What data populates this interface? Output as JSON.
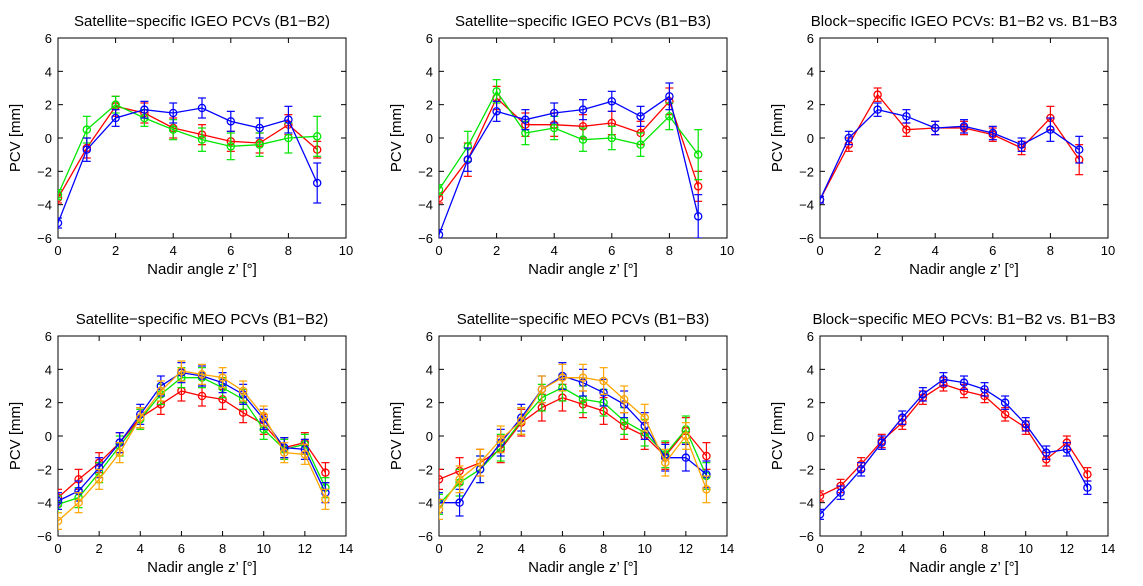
{
  "chart_data": [
    {
      "type": "line",
      "title": "Satellite−specific IGEO PCVs (B1−B2)",
      "xlabel": "Nadir angle z’ [°]",
      "ylabel": "PCV [mm]",
      "xlim": [
        0,
        10
      ],
      "ylim": [
        -6,
        6
      ],
      "xticks": [
        "0",
        "2",
        "4",
        "6",
        "8",
        "10"
      ],
      "yticks": [
        "−6",
        "−4",
        "−2",
        "0",
        "2",
        "4",
        "6"
      ],
      "x": [
        0,
        1,
        2,
        3,
        4,
        5,
        6,
        7,
        8,
        9
      ],
      "series": [
        {
          "color": "#ff0000",
          "values": [
            -3.6,
            -0.6,
            1.9,
            1.5,
            0.6,
            0.2,
            -0.2,
            -0.3,
            0.8,
            -0.7
          ],
          "errors": [
            0.3,
            0.6,
            0.6,
            0.6,
            0.6,
            0.6,
            0.6,
            0.6,
            0.6,
            0.5
          ]
        },
        {
          "color": "#00e600",
          "values": [
            -3.4,
            0.5,
            2.0,
            1.2,
            0.5,
            -0.1,
            -0.5,
            -0.4,
            0.0,
            0.1
          ],
          "errors": [
            0.3,
            0.8,
            0.5,
            0.5,
            0.6,
            0.7,
            0.8,
            0.7,
            0.9,
            1.2
          ]
        },
        {
          "color": "#0000ff",
          "values": [
            -5.1,
            -0.7,
            1.2,
            1.7,
            1.5,
            1.8,
            1.0,
            0.6,
            1.1,
            -2.7
          ],
          "errors": [
            0.3,
            0.7,
            0.5,
            0.5,
            0.6,
            0.6,
            0.6,
            0.6,
            0.8,
            1.2
          ]
        }
      ]
    },
    {
      "type": "line",
      "title": "Satellite−specific IGEO PCVs (B1−B3)",
      "xlabel": "Nadir angle z’ [°]",
      "ylabel": "PCV [mm]",
      "xlim": [
        0,
        10
      ],
      "ylim": [
        -6,
        6
      ],
      "xticks": [
        "0",
        "2",
        "4",
        "6",
        "8",
        "10"
      ],
      "yticks": [
        "−6",
        "−4",
        "−2",
        "0",
        "2",
        "4",
        "6"
      ],
      "x": [
        0,
        1,
        2,
        3,
        4,
        5,
        6,
        7,
        8,
        9
      ],
      "series": [
        {
          "color": "#ff0000",
          "values": [
            -3.6,
            -1.3,
            2.4,
            0.8,
            0.8,
            0.7,
            0.9,
            0.3,
            2.2,
            -2.9
          ],
          "errors": [
            0.3,
            1.0,
            0.7,
            0.7,
            0.7,
            0.7,
            0.7,
            0.7,
            0.8,
            0.9
          ]
        },
        {
          "color": "#00e600",
          "values": [
            -3.1,
            -0.5,
            2.8,
            0.3,
            0.6,
            -0.1,
            0.0,
            -0.4,
            1.3,
            -1.0
          ],
          "errors": [
            0.3,
            0.9,
            0.7,
            0.7,
            0.7,
            0.7,
            0.7,
            0.7,
            0.8,
            1.5
          ]
        },
        {
          "color": "#0000ff",
          "values": [
            -5.8,
            -1.3,
            1.6,
            1.1,
            1.5,
            1.7,
            2.2,
            1.3,
            2.5,
            -4.7
          ],
          "errors": [
            0.3,
            0.7,
            0.6,
            0.6,
            0.6,
            0.6,
            0.6,
            0.6,
            0.8,
            1.3
          ]
        }
      ]
    },
    {
      "type": "line",
      "title": "Block−specific IGEO PCVs: B1−B2 vs. B1−B3",
      "xlabel": "Nadir angle z’ [°]",
      "ylabel": "PCV [mm]",
      "xlim": [
        0,
        10
      ],
      "ylim": [
        -6,
        6
      ],
      "xticks": [
        "0",
        "2",
        "4",
        "6",
        "8",
        "10"
      ],
      "yticks": [
        "−6",
        "−4",
        "−2",
        "0",
        "2",
        "4",
        "6"
      ],
      "x": [
        0,
        1,
        2,
        3,
        4,
        5,
        6,
        7,
        8,
        9
      ],
      "series": [
        {
          "color": "#ff0000",
          "values": [
            -3.7,
            -0.4,
            2.6,
            0.5,
            0.6,
            0.6,
            0.2,
            -0.6,
            1.2,
            -1.3
          ],
          "errors": [
            0.2,
            0.4,
            0.4,
            0.4,
            0.4,
            0.4,
            0.4,
            0.4,
            0.7,
            0.9
          ]
        },
        {
          "color": "#0000ff",
          "values": [
            -3.7,
            0.0,
            1.7,
            1.3,
            0.6,
            0.7,
            0.3,
            -0.4,
            0.5,
            -0.7
          ],
          "errors": [
            0.2,
            0.4,
            0.4,
            0.4,
            0.4,
            0.4,
            0.4,
            0.4,
            0.7,
            0.8
          ]
        }
      ]
    },
    {
      "type": "line",
      "title": "Satellite−specific MEO PCVs (B1−B2)",
      "xlabel": "Nadir angle z’ [°]",
      "ylabel": "PCV [mm]",
      "xlim": [
        0,
        14
      ],
      "ylim": [
        -6,
        6
      ],
      "xticks": [
        "0",
        "2",
        "4",
        "6",
        "8",
        "10",
        "12",
        "14"
      ],
      "yticks": [
        "−6",
        "−4",
        "−2",
        "0",
        "2",
        "4",
        "6"
      ],
      "x": [
        0,
        1,
        2,
        3,
        4,
        5,
        6,
        7,
        8,
        9,
        10,
        11,
        12,
        13
      ],
      "series": [
        {
          "color": "#ff0000",
          "values": [
            -3.7,
            -2.6,
            -1.6,
            -0.4,
            1.1,
            1.9,
            2.7,
            2.4,
            2.2,
            1.4,
            0.7,
            -0.7,
            -0.4,
            -2.2
          ],
          "errors": [
            0.5,
            0.6,
            0.6,
            0.6,
            0.6,
            0.6,
            0.6,
            0.6,
            0.6,
            0.6,
            0.6,
            0.6,
            0.6,
            0.6
          ]
        },
        {
          "color": "#00e600",
          "values": [
            -4.1,
            -3.7,
            -2.2,
            -0.6,
            1.0,
            2.5,
            3.5,
            3.5,
            2.9,
            2.2,
            0.4,
            -0.8,
            -0.5,
            -3.1
          ],
          "errors": [
            0.5,
            0.6,
            0.6,
            0.6,
            0.6,
            0.6,
            0.6,
            0.6,
            0.6,
            0.6,
            0.6,
            0.6,
            0.6,
            0.6
          ]
        },
        {
          "color": "#0000ff",
          "values": [
            -3.9,
            -3.3,
            -1.9,
            -0.4,
            1.3,
            3.0,
            3.8,
            3.6,
            3.2,
            2.5,
            1.0,
            -0.7,
            -0.8,
            -3.4
          ],
          "errors": [
            0.5,
            0.6,
            0.6,
            0.6,
            0.6,
            0.6,
            0.6,
            0.6,
            0.6,
            0.6,
            0.6,
            0.6,
            0.6,
            0.6
          ]
        },
        {
          "color": "#ffa500",
          "values": [
            -5.1,
            -4.0,
            -2.6,
            -1.0,
            1.1,
            2.7,
            3.9,
            3.7,
            3.5,
            2.7,
            1.2,
            -1.0,
            -1.1,
            -3.8
          ],
          "errors": [
            0.5,
            0.6,
            0.6,
            0.6,
            0.6,
            0.6,
            0.6,
            0.6,
            0.6,
            0.6,
            0.6,
            0.6,
            0.6,
            0.6
          ]
        }
      ]
    },
    {
      "type": "line",
      "title": "Satellite−specific MEO PCVs (B1−B3)",
      "xlabel": "Nadir angle z’ [°]",
      "ylabel": "PCV [mm]",
      "xlim": [
        0,
        14
      ],
      "ylim": [
        -6,
        6
      ],
      "xticks": [
        "0",
        "2",
        "4",
        "6",
        "8",
        "10",
        "12",
        "14"
      ],
      "yticks": [
        "−6",
        "−4",
        "−2",
        "0",
        "2",
        "4",
        "6"
      ],
      "x": [
        0,
        1,
        2,
        3,
        4,
        5,
        6,
        7,
        8,
        9,
        10,
        11,
        12,
        13
      ],
      "series": [
        {
          "color": "#ff0000",
          "values": [
            -2.6,
            -2.1,
            -1.6,
            -0.8,
            0.8,
            1.7,
            2.3,
            1.9,
            1.5,
            0.6,
            0.0,
            -1.2,
            0.3,
            -1.2
          ],
          "errors": [
            0.6,
            0.8,
            0.8,
            0.8,
            0.8,
            0.8,
            0.8,
            0.8,
            0.8,
            0.8,
            0.8,
            0.8,
            0.8,
            0.8
          ]
        },
        {
          "color": "#00e600",
          "values": [
            -4.1,
            -2.8,
            -2.0,
            -0.7,
            0.9,
            2.3,
            2.9,
            2.2,
            2.0,
            0.9,
            0.2,
            -1.1,
            0.4,
            -2.4
          ],
          "errors": [
            0.6,
            0.8,
            0.8,
            0.8,
            0.8,
            0.8,
            0.8,
            0.8,
            0.8,
            0.8,
            0.8,
            0.8,
            0.8,
            0.8
          ]
        },
        {
          "color": "#0000ff",
          "values": [
            -4.0,
            -4.0,
            -2.0,
            -0.4,
            1.1,
            2.8,
            3.6,
            3.2,
            2.6,
            1.9,
            0.6,
            -1.3,
            -1.3,
            -2.3
          ],
          "errors": [
            0.6,
            0.8,
            0.8,
            0.8,
            0.8,
            0.8,
            0.8,
            0.8,
            0.8,
            0.8,
            0.8,
            0.8,
            0.8,
            0.8
          ]
        },
        {
          "color": "#ffa500",
          "values": [
            -4.4,
            -2.6,
            -1.6,
            -0.2,
            0.9,
            2.8,
            3.5,
            3.5,
            3.3,
            2.2,
            1.1,
            -1.6,
            0.0,
            -3.2
          ],
          "errors": [
            0.6,
            0.8,
            0.8,
            0.8,
            0.8,
            0.8,
            0.8,
            0.8,
            0.8,
            0.8,
            0.8,
            0.8,
            0.8,
            0.8
          ]
        }
      ]
    },
    {
      "type": "line",
      "title": "Block−specific MEO PCVs: B1−B2 vs. B1−B3",
      "xlabel": "Nadir angle z’ [°]",
      "ylabel": "PCV [mm]",
      "xlim": [
        0,
        14
      ],
      "ylim": [
        -6,
        6
      ],
      "xticks": [
        "0",
        "2",
        "4",
        "6",
        "8",
        "10",
        "12",
        "14"
      ],
      "yticks": [
        "−6",
        "−4",
        "−2",
        "0",
        "2",
        "4",
        "6"
      ],
      "x": [
        0,
        1,
        2,
        3,
        4,
        5,
        6,
        7,
        8,
        9,
        10,
        11,
        12,
        13
      ],
      "series": [
        {
          "color": "#ff0000",
          "values": [
            -3.6,
            -3.0,
            -1.7,
            -0.3,
            0.8,
            2.3,
            3.1,
            2.7,
            2.4,
            1.3,
            0.5,
            -1.4,
            -0.4,
            -2.3
          ],
          "errors": [
            0.3,
            0.4,
            0.4,
            0.4,
            0.4,
            0.4,
            0.4,
            0.4,
            0.4,
            0.4,
            0.4,
            0.4,
            0.4,
            0.4
          ]
        },
        {
          "color": "#0000ff",
          "values": [
            -4.7,
            -3.4,
            -2.0,
            -0.4,
            1.1,
            2.5,
            3.4,
            3.2,
            2.8,
            2.0,
            0.7,
            -1.0,
            -0.8,
            -3.1
          ],
          "errors": [
            0.3,
            0.4,
            0.4,
            0.4,
            0.4,
            0.4,
            0.4,
            0.4,
            0.4,
            0.4,
            0.4,
            0.4,
            0.4,
            0.4
          ]
        }
      ]
    }
  ]
}
